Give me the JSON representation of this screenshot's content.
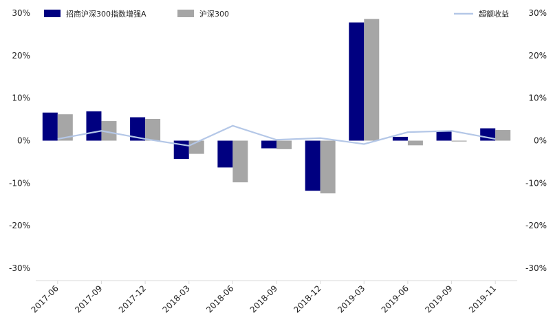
{
  "chart_data": {
    "type": "bar",
    "categories": [
      "2017-06",
      "2017-09",
      "2017-12",
      "2018-03",
      "2018-06",
      "2018-09",
      "2018-12",
      "2019-03",
      "2019-06",
      "2019-09",
      "2019-11"
    ],
    "series": [
      {
        "name": "招商沪深300指数增强A",
        "kind": "bar",
        "color": "#000080",
        "values": [
          6.6,
          6.9,
          5.5,
          -4.3,
          -6.3,
          -1.8,
          -11.8,
          27.8,
          0.9,
          2.1,
          2.9
        ]
      },
      {
        "name": "沪深300",
        "kind": "bar",
        "color": "#a6a6a6",
        "values": [
          6.2,
          4.6,
          5.1,
          -3.1,
          -9.8,
          -2.0,
          -12.4,
          28.6,
          -1.1,
          -0.2,
          2.5
        ]
      },
      {
        "name": "超额收益",
        "kind": "line",
        "axis": "right",
        "color": "#b4c7e7",
        "values": [
          0.4,
          2.3,
          0.4,
          -1.2,
          3.5,
          0.2,
          0.6,
          -0.8,
          2.0,
          2.3,
          0.4
        ]
      }
    ],
    "ylim": [
      -30,
      30
    ],
    "y_ticks": [
      "30%",
      "20%",
      "10%",
      "0%",
      "-10%",
      "-20%",
      "-30%"
    ],
    "y2_ticks": [
      "30%",
      "20%",
      "10%",
      "0%",
      "-10%",
      "-20%",
      "-30%"
    ],
    "legend": {
      "placement": "top"
    },
    "grid": false,
    "title": "",
    "xlabel": "",
    "ylabel": ""
  }
}
